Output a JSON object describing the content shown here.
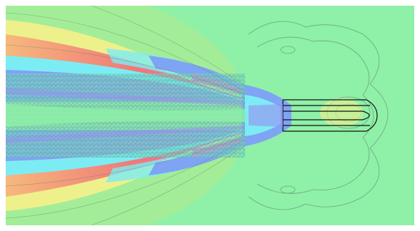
{
  "figure": {
    "colors": {
      "background": "#8ff0a8",
      "green_light": "#a8ec94",
      "yellow": "#eef08c",
      "orange": "#f6b87c",
      "red": "#f07878",
      "magenta": "#e070d8",
      "violet": "#9a8ef0",
      "blue": "#7fa4f4",
      "cyan": "#7cecf4",
      "teal": "#6ed6c4",
      "contour_line": "#5a8a6a",
      "body_outline": "#111111"
    }
  }
}
